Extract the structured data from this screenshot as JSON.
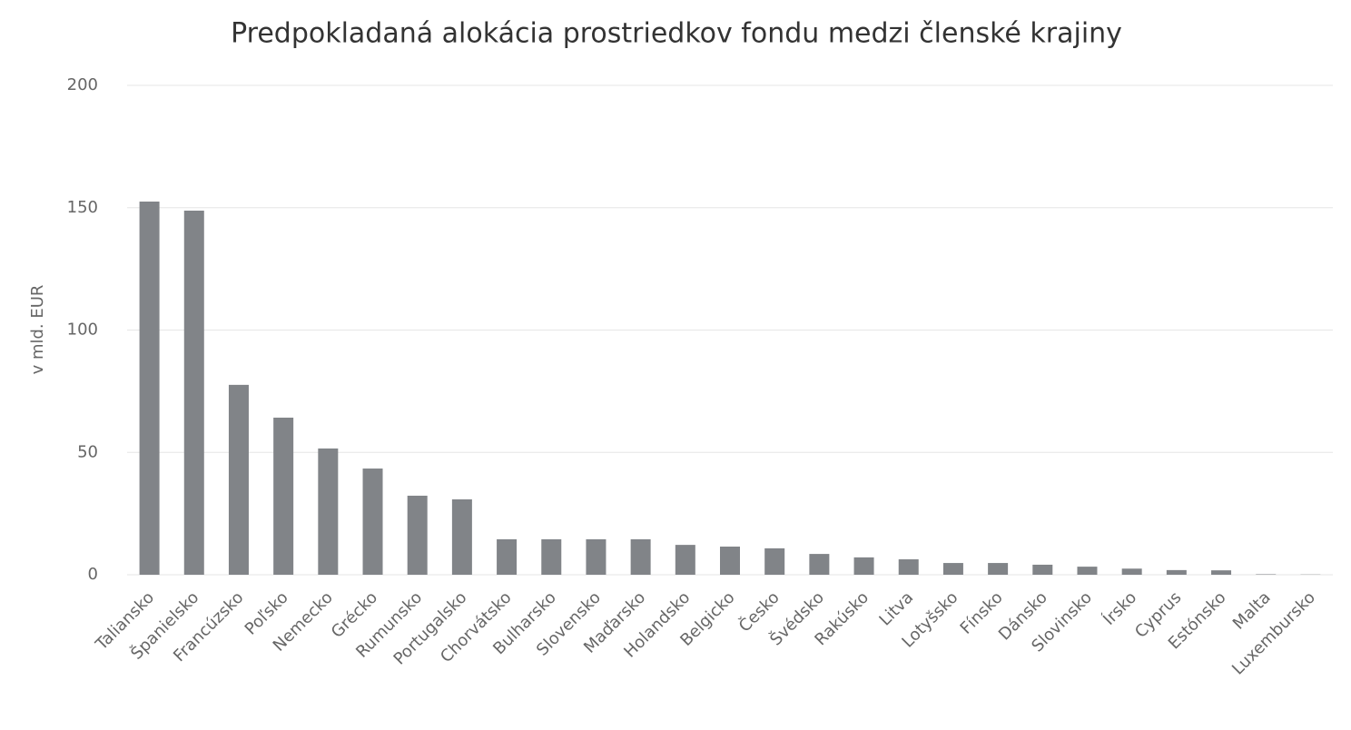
{
  "chart_data": {
    "type": "bar",
    "title": "Predpokladaná alokácia prostriedkov fondu medzi členské krajiny",
    "y_label": "v mld. EUR",
    "categories": [
      "Taliansko",
      "Španielsko",
      "Francúzsko",
      "Poľsko",
      "Nemecko",
      "Grécko",
      "Rumunsko",
      "Portugalsko",
      "Chorvátsko",
      "Bulharsko",
      "Slovensko",
      "Maďarsko",
      "Holandsko",
      "Belgicko",
      "Česko",
      "Švédsko",
      "Rakúsko",
      "Litva",
      "Lotyšsko",
      "Fínsko",
      "Dánsko",
      "Slovinsko",
      "Írsko",
      "Cyprus",
      "Estónsko",
      "Malta",
      "Luxembursko"
    ],
    "values": [
      152.5,
      148.8,
      77.6,
      64.2,
      51.6,
      43.4,
      32.3,
      30.8,
      14.5,
      14.5,
      14.5,
      14.5,
      12.2,
      11.5,
      10.8,
      8.5,
      7.1,
      6.3,
      4.8,
      4.8,
      4.1,
      3.3,
      2.5,
      1.9,
      1.8,
      0.2,
      0.1
    ],
    "color": "#818488",
    "ylim": [
      0,
      200
    ],
    "yticks": [
      0,
      50,
      100,
      150,
      200
    ],
    "grid": true
  }
}
